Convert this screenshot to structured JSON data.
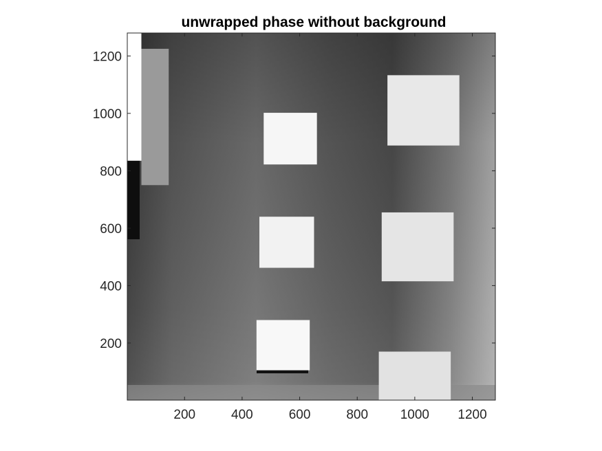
{
  "figure": {
    "title": "unwrapped phase without background",
    "colormap": "gray",
    "x_axis": {
      "ticks": [
        "200",
        "400",
        "600",
        "800",
        "1000",
        "1200"
      ],
      "values": [
        200,
        400,
        600,
        800,
        1000,
        1200
      ],
      "lim": [
        1,
        1280
      ]
    },
    "y_axis": {
      "ticks": [
        "200",
        "400",
        "600",
        "800",
        "1000",
        "1200"
      ],
      "values": [
        200,
        400,
        600,
        800,
        1000,
        1200
      ],
      "lim": [
        1,
        1280
      ]
    },
    "box_color": "#262626",
    "bright_patches": [
      {
        "name": "top-left-strip",
        "x": [
          0,
          50
        ],
        "y": [
          835,
          1280
        ],
        "gray": "#ffffff"
      },
      {
        "name": "upper-left-bar",
        "x": [
          50,
          145
        ],
        "y": [
          750,
          1225
        ],
        "gray": "#9a9a9a"
      },
      {
        "name": "square-upper-mid",
        "x": [
          475,
          660
        ],
        "y": [
          822,
          1002
        ],
        "gray": "#f6f6f6"
      },
      {
        "name": "square-upper-right",
        "x": [
          905,
          1155
        ],
        "y": [
          888,
          1133
        ],
        "gray": "#e8e8e8"
      },
      {
        "name": "square-center",
        "x": [
          460,
          650
        ],
        "y": [
          462,
          640
        ],
        "gray": "#f2f2f2"
      },
      {
        "name": "square-mid-right",
        "x": [
          885,
          1135
        ],
        "y": [
          415,
          655
        ],
        "gray": "#e5e5e5"
      },
      {
        "name": "square-lower-mid",
        "x": [
          450,
          635
        ],
        "y": [
          105,
          280
        ],
        "gray": "#f8f8f8"
      },
      {
        "name": "square-lower-right",
        "x": [
          875,
          1125
        ],
        "y": [
          0,
          170
        ],
        "gray": "#e2e2e2"
      }
    ]
  }
}
